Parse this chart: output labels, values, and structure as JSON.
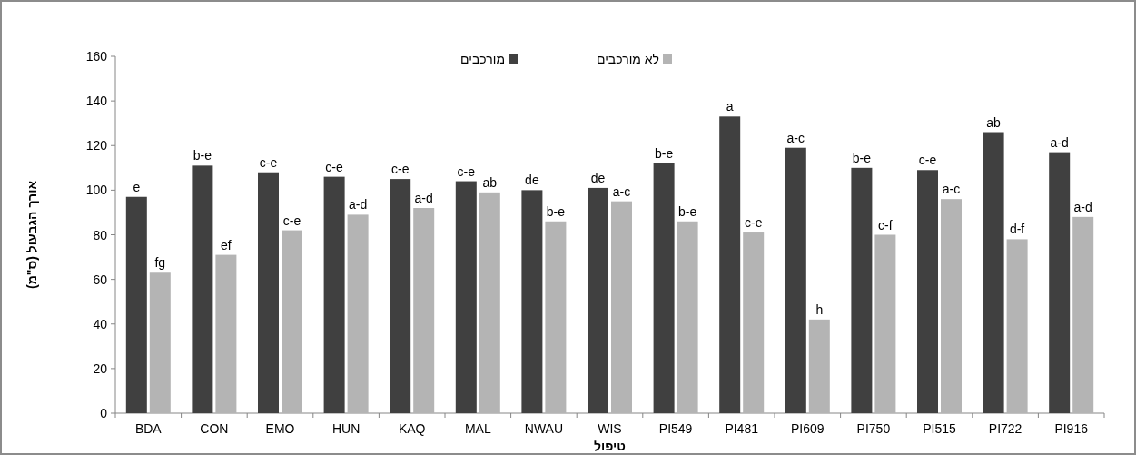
{
  "chart_data": {
    "type": "bar",
    "ylabel": "אורך הגבעול (ס\"מ)",
    "xlabel": "טיפול",
    "categories": [
      "BDA",
      "CON",
      "EMO",
      "HUN",
      "KAQ",
      "MAL",
      "NWAU",
      "WIS",
      "PI549",
      "PI481",
      "PI609",
      "PI750",
      "PI515",
      "PI722",
      "PI916"
    ],
    "series": [
      {
        "name": "מורכבים",
        "color": "#404040",
        "values": [
          97,
          111,
          108,
          106,
          105,
          104,
          100,
          101,
          112,
          133,
          119,
          110,
          109,
          126,
          117
        ],
        "value_labels": [
          "e",
          "b-e",
          "c-e",
          "c-e",
          "c-e",
          "c-e",
          "de",
          "de",
          "b-e",
          "a",
          "a-c",
          "b-e",
          "c-e",
          "ab",
          "a-d"
        ]
      },
      {
        "name": "לא מורכבים",
        "color": "#b4b4b4",
        "values": [
          63,
          71,
          82,
          89,
          92,
          99,
          86,
          95,
          86,
          81,
          42,
          80,
          96,
          78,
          88
        ],
        "value_labels": [
          "fg",
          "ef",
          "c-e",
          "a-d",
          "a-d",
          "ab",
          "b-e",
          "a-c",
          "b-e",
          "c-e",
          "h",
          "c-f",
          "a-c",
          "d-f",
          "a-d"
        ]
      }
    ],
    "ylim": [
      0,
      160
    ],
    "yticks": [
      0,
      20,
      40,
      60,
      80,
      100,
      120,
      140,
      160
    ],
    "legend": "top",
    "grid": false
  }
}
